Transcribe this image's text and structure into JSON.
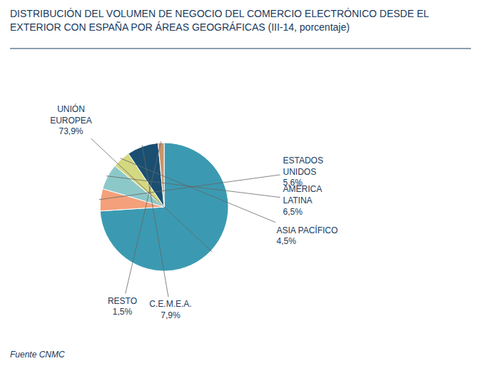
{
  "chart_data": {
    "type": "pie",
    "title": "DISTRIBUCIÓN DEL VOLUMEN DE NEGOCIO DEL COMERCIO ELECTRÓNICO DESDE EL\nEXTERIOR CON ESPAÑA POR ÁREAS GEOGRÁFICAS (III-14, porcentaje)",
    "annotations": [
      "Fuente CNMC"
    ],
    "categories": [
      "UNIÓN\nEUROPEA",
      "ESTADOS\nUNIDOS",
      "AMÉRICA\nLATINA",
      "ASIA PACÍFICO",
      "C.E.M.E.A.",
      "RESTO"
    ],
    "values": [
      73.9,
      5.6,
      6.5,
      4.5,
      7.9,
      1.5
    ],
    "value_labels": [
      "73,9%",
      "5,6%",
      "6,5%",
      "4,5%",
      "7,9%",
      "1,5%"
    ],
    "colors": [
      "#3b9ab2",
      "#f4a07a",
      "#8dc8c8",
      "#d4d880",
      "#1a4f72",
      "#c8956a"
    ],
    "data_labels": true
  }
}
